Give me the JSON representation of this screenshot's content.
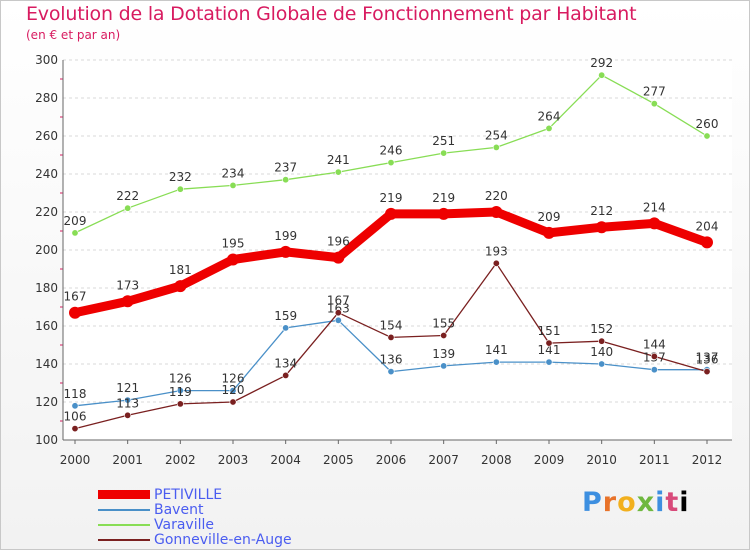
{
  "chart_data": {
    "type": "line",
    "title": "Evolution de la Dotation Globale de Fonctionnement par Habitant",
    "subtitle": "(en € et par an)",
    "categories": [
      "2000",
      "2001",
      "2002",
      "2003",
      "2004",
      "2005",
      "2006",
      "2007",
      "2008",
      "2009",
      "2010",
      "2011",
      "2012"
    ],
    "ylim": [
      100,
      300
    ],
    "yticks": [
      100,
      120,
      140,
      160,
      180,
      200,
      220,
      240,
      260,
      280,
      300
    ],
    "grid": "horizontal",
    "legend_position": "bottom-left",
    "series": [
      {
        "name": "Varaville",
        "color": "#88dd55",
        "values": [
          209,
          222,
          232,
          234,
          237,
          241,
          246,
          251,
          254,
          264,
          292,
          277,
          260
        ]
      },
      {
        "name": "Bavent",
        "color": "#4a90c8",
        "values": [
          118,
          121,
          126,
          126,
          159,
          163,
          136,
          139,
          141,
          141,
          140,
          137,
          137
        ]
      },
      {
        "name": "Gonneville-en-Auge",
        "color": "#7a2020",
        "values": [
          106,
          113,
          119,
          120,
          134,
          167,
          154,
          155,
          193,
          151,
          152,
          144,
          136
        ]
      },
      {
        "name": "PETIVILLE",
        "color": "#ee0000",
        "values": [
          167,
          173,
          181,
          195,
          199,
          196,
          219,
          219,
          220,
          209,
          212,
          214,
          204
        ]
      }
    ]
  },
  "legend": {
    "items": [
      {
        "label": "PETIVILLE",
        "color": "#ee0000"
      },
      {
        "label": "Bavent",
        "color": "#4a90c8"
      },
      {
        "label": "Varaville",
        "color": "#88dd55"
      },
      {
        "label": "Gonneville-en-Auge",
        "color": "#7a2020"
      }
    ]
  },
  "logo": {
    "letters": [
      "P",
      "r",
      "o",
      "x",
      "i",
      "t",
      "i"
    ]
  }
}
